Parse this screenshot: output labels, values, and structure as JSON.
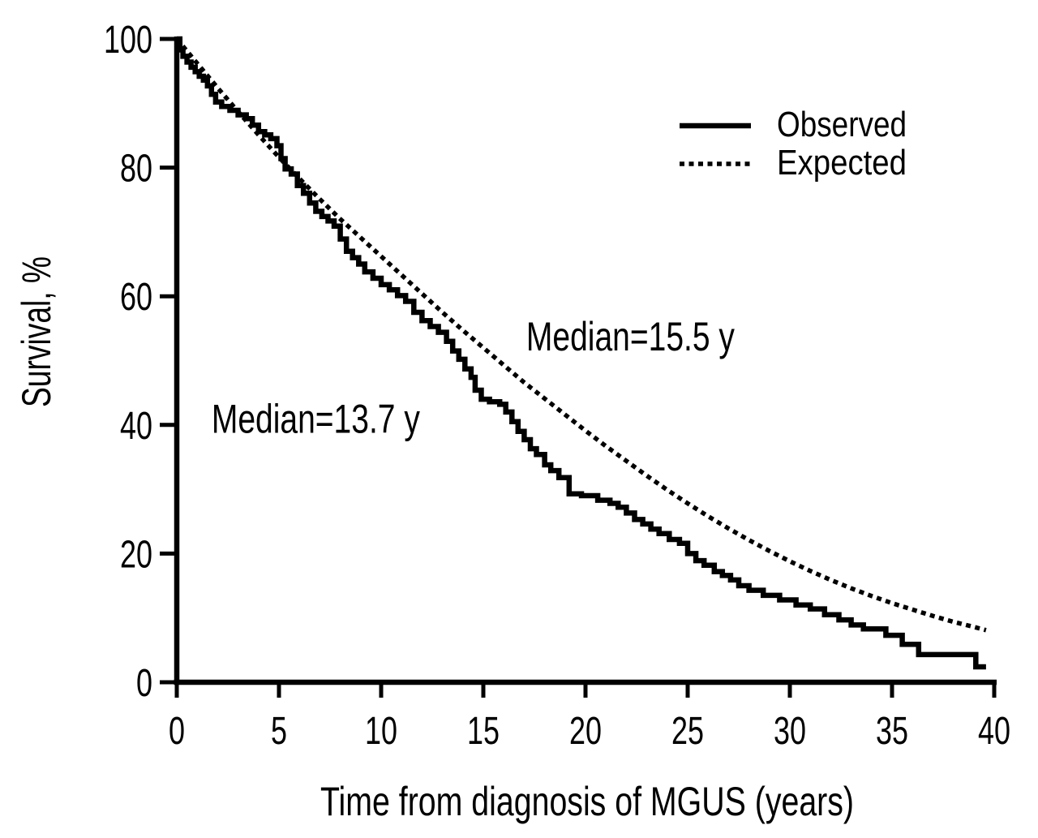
{
  "figure": {
    "background": "#ffffff",
    "ink_color": "#000000"
  },
  "chart_data": {
    "type": "line",
    "title": "",
    "xlabel": "Time from diagnosis of MGUS (years)",
    "ylabel": "Survival, %",
    "xlim": [
      0,
      40
    ],
    "ylim": [
      0,
      100
    ],
    "x_ticks": [
      0,
      5,
      10,
      15,
      20,
      25,
      30,
      35,
      40
    ],
    "y_ticks": [
      0,
      20,
      40,
      60,
      80,
      100
    ],
    "grid": false,
    "legend": {
      "position": "upper-right",
      "entries": [
        {
          "label": "Observed",
          "line_style": "solid"
        },
        {
          "label": "Expected",
          "line_style": "dotted"
        }
      ]
    },
    "annotations": [
      {
        "text": "Median=13.7 y",
        "series": "Observed",
        "x_years": 1.7,
        "y_percent": 38.8
      },
      {
        "text": "Median=15.5 y",
        "series": "Expected",
        "x_years": 17.1,
        "y_percent": 51.6
      }
    ],
    "series": [
      {
        "name": "Observed",
        "line_style": "solid",
        "draw": "steps-post",
        "points": [
          [
            0,
            100
          ],
          [
            0.15,
            98.3
          ],
          [
            0.3,
            97.3
          ],
          [
            0.5,
            96.4
          ],
          [
            0.7,
            95.6
          ],
          [
            0.9,
            94.9
          ],
          [
            1.1,
            94.2
          ],
          [
            1.3,
            93.6
          ],
          [
            1.5,
            92.7
          ],
          [
            1.7,
            91.4
          ],
          [
            1.9,
            90.2
          ],
          [
            2.2,
            89.5
          ],
          [
            2.6,
            88.9
          ],
          [
            3.0,
            88.2
          ],
          [
            3.4,
            87.6
          ],
          [
            3.7,
            86.6
          ],
          [
            4.0,
            85.6
          ],
          [
            4.3,
            85.1
          ],
          [
            4.6,
            84.5
          ],
          [
            4.9,
            83.4
          ],
          [
            5.1,
            81.4
          ],
          [
            5.3,
            79.8
          ],
          [
            5.6,
            79.0
          ],
          [
            5.9,
            77.2
          ],
          [
            6.2,
            76.0
          ],
          [
            6.5,
            74.5
          ],
          [
            6.8,
            73.2
          ],
          [
            7.1,
            72.4
          ],
          [
            7.4,
            71.7
          ],
          [
            7.7,
            70.9
          ],
          [
            8.0,
            68.9
          ],
          [
            8.3,
            67.0
          ],
          [
            8.6,
            66.0
          ],
          [
            8.9,
            65.0
          ],
          [
            9.2,
            63.8
          ],
          [
            9.6,
            62.8
          ],
          [
            10.0,
            61.8
          ],
          [
            10.4,
            61.0
          ],
          [
            10.8,
            60.1
          ],
          [
            11.2,
            59.2
          ],
          [
            11.6,
            57.5
          ],
          [
            12.0,
            56.2
          ],
          [
            12.4,
            55.3
          ],
          [
            12.8,
            54.4
          ],
          [
            13.2,
            53.0
          ],
          [
            13.5,
            51.5
          ],
          [
            13.8,
            50.2
          ],
          [
            14.1,
            48.7
          ],
          [
            14.4,
            47.4
          ],
          [
            14.6,
            45.4
          ],
          [
            14.9,
            44.0
          ],
          [
            15.3,
            43.6
          ],
          [
            15.8,
            43.2
          ],
          [
            16.1,
            42.0
          ],
          [
            16.4,
            40.5
          ],
          [
            16.7,
            39.0
          ],
          [
            17.0,
            37.7
          ],
          [
            17.3,
            36.3
          ],
          [
            17.6,
            35.4
          ],
          [
            18.0,
            33.8
          ],
          [
            18.3,
            32.9
          ],
          [
            18.7,
            31.8
          ],
          [
            19.2,
            29.3
          ],
          [
            19.8,
            29.0
          ],
          [
            20.6,
            28.3
          ],
          [
            21.2,
            27.8
          ],
          [
            21.6,
            27.2
          ],
          [
            22.0,
            26.3
          ],
          [
            22.4,
            25.3
          ],
          [
            22.8,
            24.6
          ],
          [
            23.2,
            23.8
          ],
          [
            23.6,
            23.1
          ],
          [
            24.1,
            22.2
          ],
          [
            24.6,
            21.6
          ],
          [
            25.0,
            20.0
          ],
          [
            25.4,
            18.9
          ],
          [
            25.8,
            18.2
          ],
          [
            26.3,
            17.2
          ],
          [
            26.7,
            16.6
          ],
          [
            27.1,
            15.9
          ],
          [
            27.5,
            15.0
          ],
          [
            28.0,
            14.3
          ],
          [
            28.7,
            13.5
          ],
          [
            29.5,
            12.8
          ],
          [
            30.3,
            12.0
          ],
          [
            31.0,
            11.4
          ],
          [
            31.7,
            10.5
          ],
          [
            32.4,
            9.7
          ],
          [
            33.0,
            8.9
          ],
          [
            33.6,
            8.3
          ],
          [
            34.7,
            7.3
          ],
          [
            35.5,
            5.9
          ],
          [
            36.3,
            4.3
          ],
          [
            39.1,
            2.4
          ],
          [
            39.6,
            2.4
          ]
        ]
      },
      {
        "name": "Expected",
        "line_style": "dotted",
        "draw": "line",
        "points": [
          [
            0,
            100
          ],
          [
            1,
            96.2
          ],
          [
            2,
            92.4
          ],
          [
            3,
            88.7
          ],
          [
            4,
            85.1
          ],
          [
            5,
            81.6
          ],
          [
            6,
            78.3
          ],
          [
            7,
            75.1
          ],
          [
            8,
            72.0
          ],
          [
            9,
            69.1
          ],
          [
            10,
            66.2
          ],
          [
            11,
            63.3
          ],
          [
            12,
            60.4
          ],
          [
            13,
            57.5
          ],
          [
            14,
            54.7
          ],
          [
            15,
            52.0
          ],
          [
            16,
            49.3
          ],
          [
            17,
            46.6
          ],
          [
            18,
            44.1
          ],
          [
            19,
            41.6
          ],
          [
            20,
            39.1
          ],
          [
            21,
            36.7
          ],
          [
            22,
            34.4
          ],
          [
            23,
            32.1
          ],
          [
            24,
            29.9
          ],
          [
            25,
            27.8
          ],
          [
            26,
            25.8
          ],
          [
            27,
            23.9
          ],
          [
            28,
            22.1
          ],
          [
            29,
            20.4
          ],
          [
            30,
            18.8
          ],
          [
            31,
            17.3
          ],
          [
            32,
            15.9
          ],
          [
            33,
            14.6
          ],
          [
            34,
            13.4
          ],
          [
            35,
            12.3
          ],
          [
            36,
            11.3
          ],
          [
            37,
            10.3
          ],
          [
            38,
            9.4
          ],
          [
            39,
            8.6
          ],
          [
            39.6,
            8.1
          ]
        ]
      }
    ]
  }
}
